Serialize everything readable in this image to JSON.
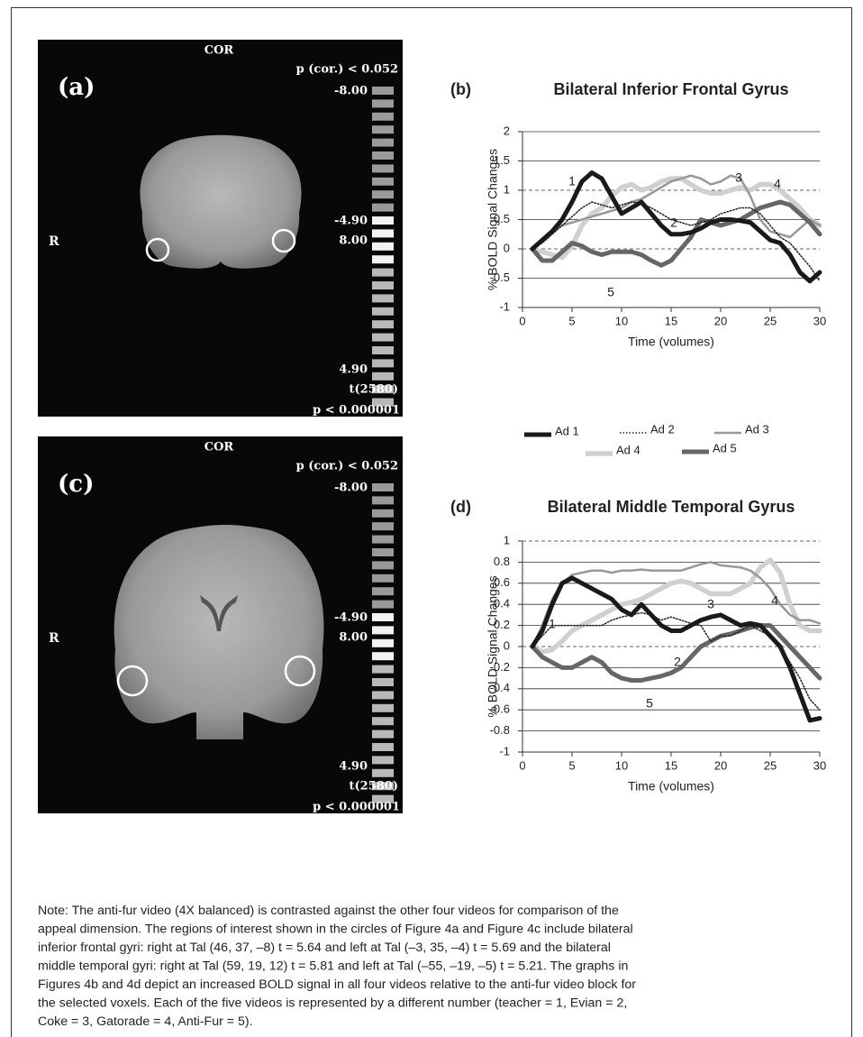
{
  "panels": [
    {
      "label": "(a)",
      "view": "COR",
      "p_corrected": "p (cor.) < 0.052",
      "scale_labels": [
        "-8.00",
        "-4.90",
        "8.00",
        "4.90"
      ],
      "stat": "t(2580)",
      "p_value": "p < 0.000001",
      "side": "R"
    },
    {
      "label": "(c)",
      "view": "COR",
      "p_corrected": "p (cor.) < 0.052",
      "scale_labels": [
        "-8.00",
        "-4.90",
        "8.00",
        "4.90"
      ],
      "stat": "t(2580)",
      "p_value": "p < 0.000001",
      "side": "R"
    }
  ],
  "chart_data": [
    {
      "type": "line",
      "panel_label": "(b)",
      "title": "Bilateral Inferior Frontal Gyrus",
      "x_label": "Time (volumes)",
      "y_label": "% BOLD Signal Changes",
      "x": [
        1,
        2,
        3,
        4,
        5,
        6,
        7,
        8,
        9,
        10,
        11,
        12,
        13,
        14,
        15,
        16,
        17,
        18,
        19,
        20,
        21,
        22,
        23,
        24,
        25,
        26,
        27,
        28,
        29,
        30
      ],
      "xlim": [
        0,
        30
      ],
      "xticks": [
        0,
        5,
        10,
        15,
        20,
        25,
        30
      ],
      "ylim": [
        -1,
        2
      ],
      "yticks": [
        -1,
        -0.5,
        0,
        0.5,
        1,
        1.5,
        2
      ],
      "grid": true,
      "dashed_grid_at": [
        0,
        1
      ],
      "curve_labels": [
        "1",
        "2",
        "3",
        "4",
        "5"
      ],
      "series": [
        {
          "name": "Ad 1",
          "color": "#1a1a1a",
          "style": "solid",
          "values": [
            0,
            0.15,
            0.3,
            0.5,
            0.8,
            1.15,
            1.3,
            1.2,
            0.9,
            0.6,
            0.7,
            0.8,
            0.6,
            0.4,
            0.25,
            0.25,
            0.28,
            0.35,
            0.45,
            0.5,
            0.5,
            0.48,
            0.45,
            0.3,
            0.15,
            0.1,
            -0.1,
            -0.4,
            -0.55,
            -0.4
          ]
        },
        {
          "name": "Ad 2",
          "color": "#222222",
          "style": "dotted",
          "values": [
            0,
            0.1,
            0.25,
            0.4,
            0.55,
            0.7,
            0.8,
            0.75,
            0.7,
            0.75,
            0.8,
            0.78,
            0.7,
            0.6,
            0.5,
            0.45,
            0.4,
            0.45,
            0.5,
            0.6,
            0.65,
            0.7,
            0.7,
            0.6,
            0.4,
            0.2,
            0.1,
            -0.1,
            -0.3,
            -0.55
          ]
        },
        {
          "name": "Ad 3",
          "color": "#999999",
          "style": "solid",
          "values": [
            0,
            0.15,
            0.3,
            0.4,
            0.45,
            0.5,
            0.55,
            0.6,
            0.65,
            0.7,
            0.8,
            0.85,
            0.95,
            1.05,
            1.15,
            1.2,
            1.25,
            1.2,
            1.1,
            1.15,
            1.25,
            1.2,
            0.9,
            0.5,
            0.3,
            0.25,
            0.2,
            0.35,
            0.5,
            0.4
          ]
        },
        {
          "name": "Ad 4",
          "color": "#d0d0d0",
          "style": "solid",
          "values": [
            0,
            -0.05,
            -0.1,
            -0.15,
            0.05,
            0.4,
            0.6,
            0.7,
            0.9,
            1.05,
            1.1,
            1.0,
            1.05,
            1.15,
            1.2,
            1.2,
            1.1,
            1.0,
            0.95,
            0.95,
            1.0,
            1.05,
            1.0,
            1.1,
            1.1,
            1.0,
            0.85,
            0.7,
            0.5,
            0.4
          ]
        },
        {
          "name": "Ad 5",
          "color": "#666666",
          "style": "solid",
          "values": [
            0,
            -0.2,
            -0.2,
            -0.05,
            0.1,
            0.05,
            -0.05,
            -0.1,
            -0.05,
            -0.05,
            -0.05,
            -0.1,
            -0.2,
            -0.28,
            -0.2,
            0.0,
            0.2,
            0.5,
            0.45,
            0.4,
            0.45,
            0.5,
            0.6,
            0.7,
            0.75,
            0.8,
            0.75,
            0.6,
            0.45,
            0.25
          ]
        }
      ]
    },
    {
      "type": "line",
      "panel_label": "(d)",
      "title": "Bilateral Middle Temporal Gyrus",
      "x_label": "Time (volumes)",
      "y_label": "% BOLD Signal Changes",
      "x": [
        1,
        2,
        3,
        4,
        5,
        6,
        7,
        8,
        9,
        10,
        11,
        12,
        13,
        14,
        15,
        16,
        17,
        18,
        19,
        20,
        21,
        22,
        23,
        24,
        25,
        26,
        27,
        28,
        29,
        30
      ],
      "xlim": [
        0,
        30
      ],
      "xticks": [
        0,
        5,
        10,
        15,
        20,
        25,
        30
      ],
      "ylim": [
        -1,
        1
      ],
      "yticks": [
        -1,
        -0.8,
        -0.6,
        -0.4,
        -0.2,
        0,
        0.2,
        0.4,
        0.6,
        0.8,
        1
      ],
      "grid": true,
      "dashed_grid_at": [
        0,
        1
      ],
      "curve_labels": [
        "1",
        "2",
        "3",
        "4",
        "5"
      ],
      "series": [
        {
          "color": "#1a1a1a",
          "style": "solid",
          "values": [
            0,
            0.15,
            0.4,
            0.6,
            0.65,
            0.6,
            0.55,
            0.5,
            0.45,
            0.35,
            0.3,
            0.4,
            0.3,
            0.2,
            0.15,
            0.15,
            0.2,
            0.25,
            0.28,
            0.3,
            0.25,
            0.2,
            0.22,
            0.2,
            0.1,
            0,
            -0.2,
            -0.45,
            -0.7,
            -0.68
          ]
        },
        {
          "color": "#222222",
          "style": "dotted",
          "values": [
            0,
            0.1,
            0.2,
            0.2,
            0.2,
            0.2,
            0.2,
            0.2,
            0.25,
            0.28,
            0.3,
            0.32,
            0.3,
            0.25,
            0.28,
            0.25,
            0.22,
            0.2,
            0.05,
            0.1,
            0.1,
            0.15,
            0.2,
            0.15,
            0.1,
            0,
            -0.15,
            -0.3,
            -0.5,
            -0.6
          ]
        },
        {
          "color": "#999999",
          "style": "solid",
          "values": [
            0,
            0.2,
            0.45,
            0.6,
            0.68,
            0.7,
            0.72,
            0.72,
            0.7,
            0.72,
            0.72,
            0.73,
            0.72,
            0.72,
            0.72,
            0.72,
            0.75,
            0.78,
            0.8,
            0.77,
            0.76,
            0.75,
            0.72,
            0.65,
            0.55,
            0.4,
            0.3,
            0.25,
            0.25,
            0.22
          ]
        },
        {
          "color": "#d0d0d0",
          "style": "solid",
          "values": [
            0,
            -0.05,
            -0.03,
            0.05,
            0.15,
            0.2,
            0.25,
            0.3,
            0.35,
            0.4,
            0.42,
            0.45,
            0.5,
            0.55,
            0.6,
            0.62,
            0.6,
            0.55,
            0.5,
            0.5,
            0.5,
            0.55,
            0.6,
            0.75,
            0.82,
            0.7,
            0.4,
            0.2,
            0.15,
            0.15
          ]
        },
        {
          "color": "#666666",
          "style": "solid",
          "values": [
            0,
            -0.1,
            -0.15,
            -0.2,
            -0.2,
            -0.15,
            -0.1,
            -0.15,
            -0.25,
            -0.3,
            -0.32,
            -0.32,
            -0.3,
            -0.28,
            -0.25,
            -0.2,
            -0.1,
            0,
            0.05,
            0.1,
            0.12,
            0.15,
            0.18,
            0.2,
            0.2,
            0.1,
            0,
            -0.1,
            -0.2,
            -0.3
          ]
        }
      ]
    }
  ],
  "note": [
    "Note: The anti-fur video (4X balanced) is contrasted against the other four videos for comparison of the",
    "appeal dimension. The regions of interest shown in the circles of Figure 4a and Figure 4c include bilateral",
    "inferior frontal gyri: right at Tal (46, 37, –8) t = 5.64 and left at Tal (–3, 35, –4) t = 5.69 and the bilateral",
    "middle temporal gyri: right at Tal (59, 19, 12) t = 5.81 and left at Tal (–55, –19, –5) t = 5.21. The graphs in",
    "Figures 4b and 4d depict an increased BOLD signal in all four videos relative to the anti-fur video block for",
    "the selected voxels. Each of the five videos is represented by a different number (teacher = 1, Evian = 2,",
    "Coke = 3, Gatorade = 4, Anti-Fur = 5)."
  ]
}
